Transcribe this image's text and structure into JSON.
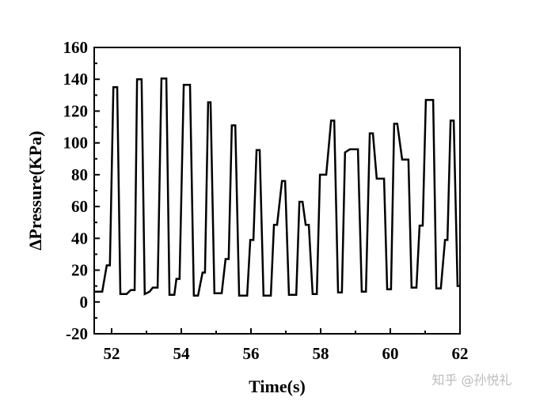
{
  "chart_data": {
    "type": "line",
    "xlabel": "Time(s)",
    "ylabel": "ΔPressure(KPa)",
    "xlim": [
      51.5,
      62
    ],
    "ylim": [
      -20,
      160
    ],
    "xticks": [
      52,
      54,
      56,
      58,
      60,
      62
    ],
    "yticks": [
      -20,
      0,
      20,
      40,
      60,
      80,
      100,
      120,
      140,
      160
    ],
    "series": [
      {
        "color": "#000000",
        "x": [
          51.5,
          51.73,
          51.86,
          51.95,
          52.05,
          52.16,
          52.25,
          52.43,
          52.55,
          52.66,
          52.73,
          52.86,
          52.95,
          53.09,
          53.18,
          53.32,
          53.43,
          53.57,
          53.66,
          53.8,
          53.86,
          53.95,
          54.07,
          54.25,
          54.36,
          54.48,
          54.61,
          54.68,
          54.77,
          54.84,
          54.95,
          55.16,
          55.27,
          55.36,
          55.45,
          55.55,
          55.66,
          55.89,
          55.98,
          56.07,
          56.16,
          56.25,
          56.36,
          56.57,
          56.66,
          56.75,
          56.89,
          56.98,
          57.09,
          57.3,
          57.39,
          57.48,
          57.57,
          57.66,
          57.77,
          57.89,
          57.98,
          58.16,
          58.3,
          58.39,
          58.5,
          58.61,
          58.7,
          58.84,
          59.07,
          59.18,
          59.3,
          59.41,
          59.5,
          59.61,
          59.82,
          59.91,
          60.02,
          60.11,
          60.2,
          60.34,
          60.52,
          60.61,
          60.75,
          60.84,
          60.93,
          61.02,
          61.23,
          61.32,
          61.45,
          61.57,
          61.64,
          61.73,
          61.82,
          61.93,
          62.0
        ],
        "values": [
          6.5,
          6.5,
          23,
          23,
          135,
          135,
          5,
          5,
          7.5,
          7.5,
          140,
          140,
          5,
          6.5,
          9,
          9,
          140.5,
          140.5,
          4.5,
          4.5,
          14.5,
          14.5,
          136.5,
          136.5,
          4,
          4,
          18.5,
          18.5,
          125.5,
          125.5,
          5.5,
          5.5,
          27,
          27,
          111,
          111,
          4,
          4,
          39,
          39,
          95.5,
          95.5,
          4,
          4,
          48.5,
          48.5,
          76,
          76,
          4.5,
          4.5,
          63,
          63,
          48.5,
          48.5,
          5,
          5,
          80,
          80,
          114,
          114,
          6,
          6,
          94,
          96,
          96,
          6.5,
          6.5,
          106,
          106,
          77.5,
          77.5,
          8,
          8,
          112,
          112,
          89.5,
          89.5,
          9,
          9,
          48,
          48,
          127,
          127,
          8.5,
          8.5,
          39,
          39,
          114,
          114,
          10,
          10
        ]
      }
    ]
  },
  "watermark": "知乎 @孙悦礼"
}
